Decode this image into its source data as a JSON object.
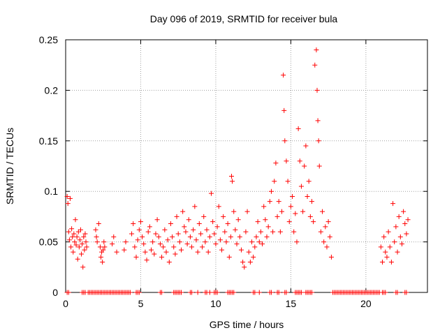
{
  "chart_data": {
    "type": "scatter",
    "title": "Day 096 of 2019, SRMTID for receiver bula",
    "xlabel": "GPS time / hours",
    "ylabel": "SRMTID / TECUs",
    "xlim": [
      0,
      24.1
    ],
    "ylim": [
      0,
      0.25
    ],
    "xticks": [
      0,
      5,
      10,
      15,
      20
    ],
    "xtick_labels": [
      "0",
      "5",
      "10",
      "15",
      "20"
    ],
    "yticks": [
      0,
      0.05,
      0.1,
      0.15,
      0.2,
      0.25
    ],
    "ytick_labels": [
      "0",
      "0.05",
      "0.1",
      "0.15",
      "0.2",
      "0.25"
    ],
    "grid": true,
    "marker": "+",
    "color": "#ff0000",
    "series": [
      {
        "name": "SRMTID",
        "points": [
          [
            0.1,
            0.095
          ],
          [
            0.15,
            0.088
          ],
          [
            0.2,
            0.06
          ],
          [
            0.25,
            0.052
          ],
          [
            0.3,
            0.093
          ],
          [
            0.35,
            0.045
          ],
          [
            0.4,
            0.063
          ],
          [
            0.45,
            0.055
          ],
          [
            0.5,
            0.04
          ],
          [
            0.55,
            0.058
          ],
          [
            0.6,
            0.05
          ],
          [
            0.65,
            0.072
          ],
          [
            0.7,
            0.047
          ],
          [
            0.75,
            0.055
          ],
          [
            0.8,
            0.033
          ],
          [
            0.85,
            0.06
          ],
          [
            0.9,
            0.045
          ],
          [
            0.95,
            0.052
          ],
          [
            1.0,
            0.062
          ],
          [
            1.05,
            0.038
          ],
          [
            1.1,
            0.048
          ],
          [
            1.15,
            0.025
          ],
          [
            1.2,
            0.055
          ],
          [
            1.25,
            0.042
          ],
          [
            1.3,
            0.058
          ],
          [
            1.35,
            0.05
          ],
          [
            1.4,
            0.045
          ],
          [
            2.0,
            0.062
          ],
          [
            2.05,
            0.055
          ],
          [
            2.1,
            0.05
          ],
          [
            2.2,
            0.068
          ],
          [
            2.3,
            0.045
          ],
          [
            2.35,
            0.035
          ],
          [
            2.4,
            0.04
          ],
          [
            2.45,
            0.03
          ],
          [
            2.5,
            0.042
          ],
          [
            2.55,
            0.05
          ],
          [
            2.6,
            0.045
          ],
          [
            3.1,
            0.048
          ],
          [
            3.2,
            0.055
          ],
          [
            3.4,
            0.04
          ],
          [
            3.9,
            0.042
          ],
          [
            4.0,
            0.05
          ],
          [
            4.4,
            0.058
          ],
          [
            4.5,
            0.068
          ],
          [
            4.6,
            0.045
          ],
          [
            4.7,
            0.035
          ],
          [
            4.8,
            0.052
          ],
          [
            4.9,
            0.062
          ],
          [
            5.0,
            0.07
          ],
          [
            5.1,
            0.055
          ],
          [
            5.2,
            0.048
          ],
          [
            5.3,
            0.04
          ],
          [
            5.4,
            0.032
          ],
          [
            5.5,
            0.06
          ],
          [
            5.6,
            0.065
          ],
          [
            5.7,
            0.042
          ],
          [
            5.8,
            0.05
          ],
          [
            5.9,
            0.038
          ],
          [
            6.0,
            0.058
          ],
          [
            6.1,
            0.072
          ],
          [
            6.2,
            0.055
          ],
          [
            6.3,
            0.048
          ],
          [
            6.4,
            0.035
          ],
          [
            6.5,
            0.045
          ],
          [
            6.6,
            0.062
          ],
          [
            6.7,
            0.04
          ],
          [
            6.8,
            0.052
          ],
          [
            6.9,
            0.03
          ],
          [
            7.0,
            0.068
          ],
          [
            7.1,
            0.055
          ],
          [
            7.2,
            0.045
          ],
          [
            7.3,
            0.038
          ],
          [
            7.4,
            0.075
          ],
          [
            7.5,
            0.058
          ],
          [
            7.6,
            0.05
          ],
          [
            7.7,
            0.042
          ],
          [
            7.8,
            0.08
          ],
          [
            7.9,
            0.065
          ],
          [
            8.0,
            0.06
          ],
          [
            8.1,
            0.048
          ],
          [
            8.2,
            0.072
          ],
          [
            8.3,
            0.055
          ],
          [
            8.4,
            0.045
          ],
          [
            8.5,
            0.062
          ],
          [
            8.6,
            0.085
          ],
          [
            8.7,
            0.052
          ],
          [
            8.8,
            0.04
          ],
          [
            8.9,
            0.068
          ],
          [
            9.0,
            0.058
          ],
          [
            9.1,
            0.045
          ],
          [
            9.2,
            0.075
          ],
          [
            9.3,
            0.05
          ],
          [
            9.4,
            0.062
          ],
          [
            9.5,
            0.04
          ],
          [
            9.6,
            0.055
          ],
          [
            9.7,
            0.098
          ],
          [
            9.8,
            0.07
          ],
          [
            9.9,
            0.058
          ],
          [
            10.0,
            0.048
          ],
          [
            10.1,
            0.065
          ],
          [
            10.2,
            0.085
          ],
          [
            10.3,
            0.052
          ],
          [
            10.4,
            0.042
          ],
          [
            10.5,
            0.075
          ],
          [
            10.6,
            0.06
          ],
          [
            10.7,
            0.05
          ],
          [
            10.8,
            0.068
          ],
          [
            10.9,
            0.035
          ],
          [
            11.0,
            0.055
          ],
          [
            11.05,
            0.115
          ],
          [
            11.1,
            0.11
          ],
          [
            11.2,
            0.08
          ],
          [
            11.3,
            0.062
          ],
          [
            11.4,
            0.048
          ],
          [
            11.5,
            0.072
          ],
          [
            11.6,
            0.055
          ],
          [
            11.7,
            0.042
          ],
          [
            11.8,
            0.03
          ],
          [
            11.9,
            0.025
          ],
          [
            12.0,
            0.06
          ],
          [
            12.1,
            0.08
          ],
          [
            12.2,
            0.04
          ],
          [
            12.3,
            0.03
          ],
          [
            12.4,
            0.05
          ],
          [
            12.5,
            0.035
          ],
          [
            12.6,
            0.045
          ],
          [
            12.7,
            0.055
          ],
          [
            12.8,
            0.07
          ],
          [
            12.9,
            0.05
          ],
          [
            13.0,
            0.06
          ],
          [
            13.1,
            0.048
          ],
          [
            13.2,
            0.085
          ],
          [
            13.3,
            0.072
          ],
          [
            13.4,
            0.055
          ],
          [
            13.5,
            0.065
          ],
          [
            13.6,
            0.09
          ],
          [
            13.7,
            0.1
          ],
          [
            13.8,
            0.06
          ],
          [
            13.9,
            0.11
          ],
          [
            14.0,
            0.128
          ],
          [
            14.1,
            0.075
          ],
          [
            14.2,
            0.09
          ],
          [
            14.3,
            0.06
          ],
          [
            14.4,
            0.08
          ],
          [
            14.5,
            0.215
          ],
          [
            14.55,
            0.18
          ],
          [
            14.6,
            0.15
          ],
          [
            14.7,
            0.13
          ],
          [
            14.8,
            0.11
          ],
          [
            14.9,
            0.07
          ],
          [
            15.0,
            0.085
          ],
          [
            15.1,
            0.095
          ],
          [
            15.2,
            0.06
          ],
          [
            15.3,
            0.078
          ],
          [
            15.4,
            0.05
          ],
          [
            15.5,
            0.162
          ],
          [
            15.6,
            0.13
          ],
          [
            15.7,
            0.105
          ],
          [
            15.8,
            0.08
          ],
          [
            15.9,
            0.125
          ],
          [
            16.0,
            0.145
          ],
          [
            16.1,
            0.095
          ],
          [
            16.2,
            0.11
          ],
          [
            16.3,
            0.075
          ],
          [
            16.4,
            0.09
          ],
          [
            16.5,
            0.07
          ],
          [
            16.6,
            0.225
          ],
          [
            16.7,
            0.24
          ],
          [
            16.75,
            0.2
          ],
          [
            16.8,
            0.17
          ],
          [
            16.85,
            0.15
          ],
          [
            16.9,
            0.125
          ],
          [
            17.0,
            0.06
          ],
          [
            17.1,
            0.08
          ],
          [
            17.2,
            0.05
          ],
          [
            17.3,
            0.065
          ],
          [
            17.4,
            0.045
          ],
          [
            17.5,
            0.07
          ],
          [
            17.6,
            0.055
          ],
          [
            17.7,
            0.035
          ],
          [
            21.0,
            0.045
          ],
          [
            21.1,
            0.03
          ],
          [
            21.2,
            0.055
          ],
          [
            21.3,
            0.04
          ],
          [
            21.4,
            0.035
          ],
          [
            21.5,
            0.06
          ],
          [
            21.6,
            0.045
          ],
          [
            21.7,
            0.03
          ],
          [
            21.8,
            0.088
          ],
          [
            21.9,
            0.05
          ],
          [
            22.0,
            0.065
          ],
          [
            22.1,
            0.04
          ],
          [
            22.2,
            0.075
          ],
          [
            22.3,
            0.055
          ],
          [
            22.4,
            0.048
          ],
          [
            22.5,
            0.08
          ],
          [
            22.6,
            0.068
          ],
          [
            22.7,
            0.058
          ],
          [
            22.8,
            0.072
          ]
        ]
      }
    ],
    "zero_points_x": [
      0.1,
      0.2,
      1.1,
      1.2,
      1.3,
      1.5,
      1.6,
      1.7,
      1.8,
      1.9,
      2.0,
      2.1,
      2.2,
      2.3,
      2.4,
      2.5,
      2.6,
      2.7,
      2.8,
      2.9,
      3.0,
      3.1,
      3.2,
      3.3,
      3.4,
      3.5,
      3.6,
      3.7,
      3.8,
      3.9,
      4.0,
      4.1,
      4.2,
      4.3,
      4.7,
      4.8,
      4.9,
      6.3,
      6.4,
      7.2,
      7.3,
      7.4,
      7.5,
      7.6,
      7.7,
      8.3,
      8.4,
      8.8,
      9.3,
      9.4,
      9.6,
      9.9,
      10.0,
      10.1,
      10.8,
      10.9,
      11.0,
      11.1,
      11.2,
      12.5,
      12.6,
      12.9,
      13.6,
      13.7,
      14.1,
      14.2,
      14.6,
      14.7,
      15.3,
      15.4,
      15.5,
      15.6,
      15.7,
      16.0,
      16.1,
      16.2,
      16.3,
      16.4,
      17.8,
      17.9,
      18.0,
      18.1,
      18.2,
      18.3,
      18.4,
      18.5,
      18.6,
      18.7,
      18.8,
      18.9,
      19.0,
      19.1,
      19.2,
      19.3,
      19.4,
      19.5,
      19.6,
      19.7,
      19.8,
      19.9,
      20.0,
      20.1,
      20.2,
      20.3,
      20.4,
      20.5,
      20.6,
      20.7,
      20.8,
      20.9,
      21.1,
      21.2,
      21.3,
      22.0,
      22.1,
      22.6,
      22.7
    ]
  }
}
